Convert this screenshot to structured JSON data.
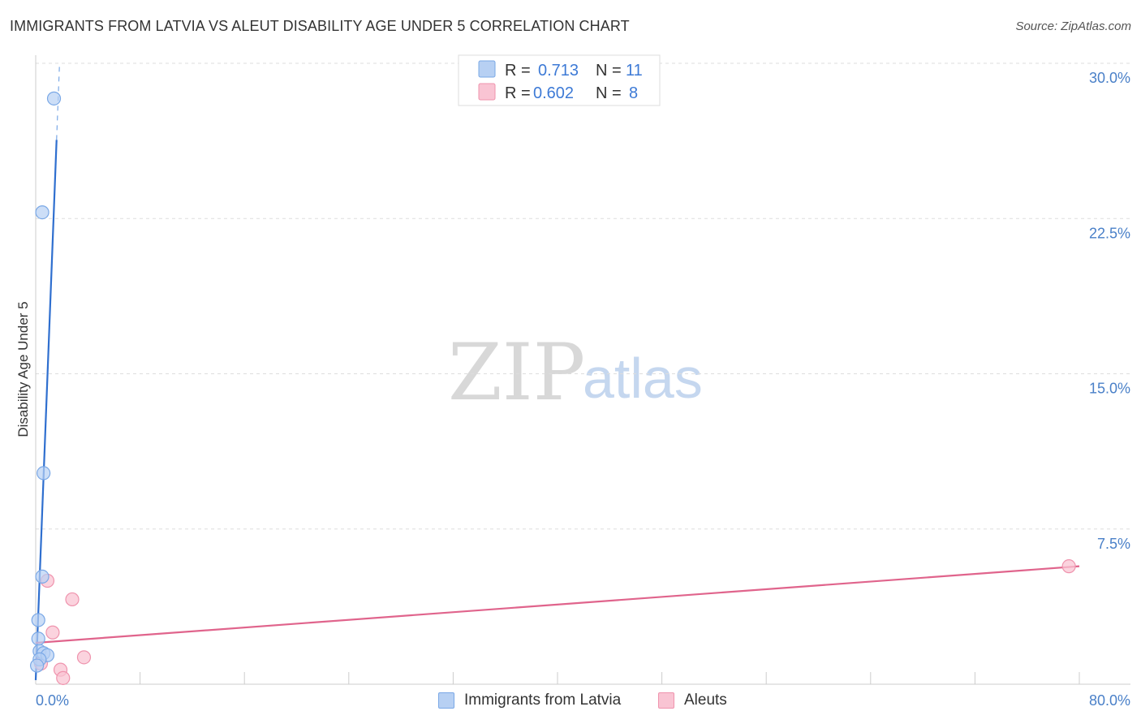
{
  "title": "IMMIGRANTS FROM LATVIA VS ALEUT DISABILITY AGE UNDER 5 CORRELATION CHART",
  "source": "Source: ZipAtlas.com",
  "watermark": {
    "zip": "ZIP",
    "atlas": "atlas"
  },
  "legend_top": {
    "rows": [
      {
        "r_label": "R =",
        "r_value": "0.713",
        "n_label": "N =",
        "n_value": "11"
      },
      {
        "r_label": "R =",
        "r_value": "0.602",
        "n_label": "N =",
        "n_value": "8"
      }
    ]
  },
  "legend_bottom": {
    "series1": "Immigrants from Latvia",
    "series2": "Aleuts"
  },
  "colors": {
    "series1_fill": "#b7d0f3",
    "series1_stroke": "#7aa8e6",
    "series1_line": "#2f6fcf",
    "series2_fill": "#f9c4d3",
    "series2_stroke": "#ef93ad",
    "series2_line": "#e0648c",
    "grid": "#dddddd",
    "axis": "#cccccc",
    "tick_label": "#4a80c8"
  },
  "chart_data": {
    "type": "scatter",
    "title": "IMMIGRANTS FROM LATVIA VS ALEUT DISABILITY AGE UNDER 5 CORRELATION CHART",
    "xlabel": "",
    "ylabel": "Disability Age Under 5",
    "xlim": [
      0,
      80
    ],
    "ylim": [
      0,
      30
    ],
    "x_tick_labels": [
      "0.0%",
      "80.0%"
    ],
    "y_ticks": [
      7.5,
      15.0,
      22.5,
      30.0
    ],
    "y_tick_labels": [
      "7.5%",
      "15.0%",
      "22.5%",
      "30.0%"
    ],
    "grid": true,
    "series": [
      {
        "name": "Immigrants from Latvia",
        "r": 0.713,
        "n": 11,
        "points": [
          {
            "x": 1.4,
            "y": 28.3
          },
          {
            "x": 0.5,
            "y": 22.8
          },
          {
            "x": 0.6,
            "y": 10.2
          },
          {
            "x": 0.5,
            "y": 5.2
          },
          {
            "x": 0.2,
            "y": 3.1
          },
          {
            "x": 0.2,
            "y": 2.2
          },
          {
            "x": 0.3,
            "y": 1.6
          },
          {
            "x": 0.6,
            "y": 1.5
          },
          {
            "x": 0.9,
            "y": 1.4
          },
          {
            "x": 0.3,
            "y": 1.2
          },
          {
            "x": 0.1,
            "y": 0.9
          }
        ],
        "trend": {
          "x0": 0.0,
          "y0": 0.2,
          "x1": 1.6,
          "y1": 26.3,
          "dash_to_y": 30.0
        }
      },
      {
        "name": "Aleuts",
        "r": 0.602,
        "n": 8,
        "points": [
          {
            "x": 0.9,
            "y": 5.0
          },
          {
            "x": 2.8,
            "y": 4.1
          },
          {
            "x": 1.3,
            "y": 2.5
          },
          {
            "x": 3.7,
            "y": 1.3
          },
          {
            "x": 1.9,
            "y": 0.7
          },
          {
            "x": 2.1,
            "y": 0.3
          },
          {
            "x": 0.4,
            "y": 1.0
          },
          {
            "x": 79.2,
            "y": 5.7
          }
        ],
        "trend": {
          "x0": 0.0,
          "y0": 2.0,
          "x1": 80.0,
          "y1": 5.7
        }
      }
    ]
  }
}
